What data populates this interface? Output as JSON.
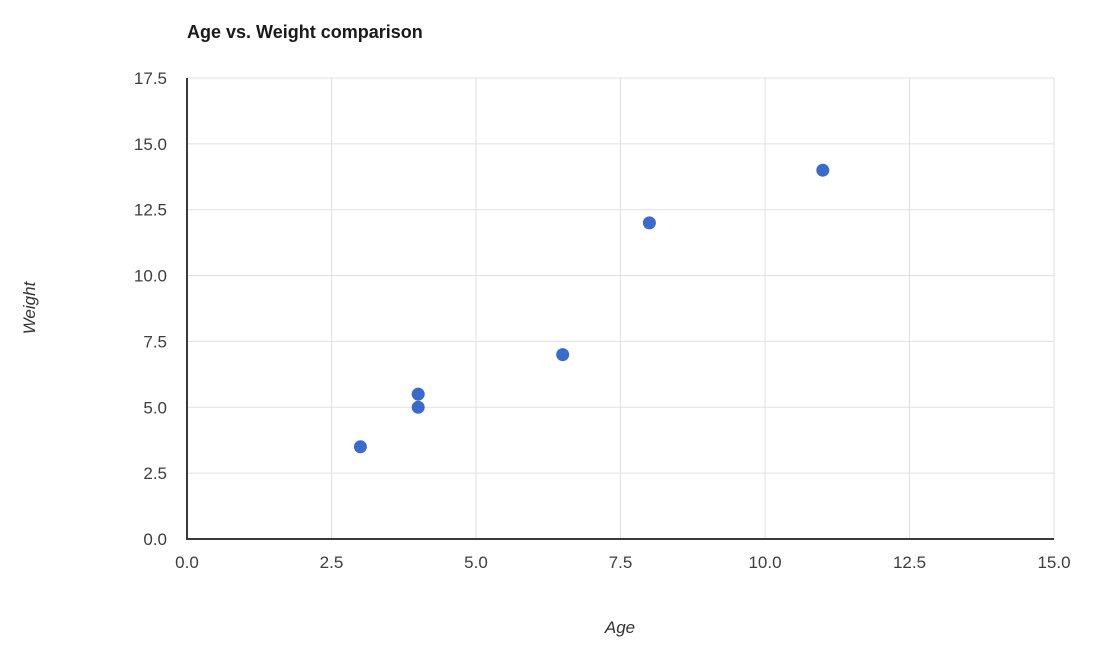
{
  "chart_data": {
    "type": "scatter",
    "title": "Age vs. Weight comparison",
    "xlabel": "Age",
    "ylabel": "Weight",
    "xlim": [
      0,
      15
    ],
    "ylim": [
      0,
      17.5
    ],
    "x_ticks": [
      0.0,
      2.5,
      5.0,
      7.5,
      10.0,
      12.5,
      15.0
    ],
    "y_ticks": [
      0.0,
      2.5,
      5.0,
      7.5,
      10.0,
      12.5,
      15.0,
      17.5
    ],
    "tick_decimals": 1,
    "grid": true,
    "legend": "none",
    "points": [
      {
        "x": 3,
        "y": 3.5
      },
      {
        "x": 4,
        "y": 5
      },
      {
        "x": 4,
        "y": 5.5
      },
      {
        "x": 6.5,
        "y": 7
      },
      {
        "x": 8,
        "y": 12
      },
      {
        "x": 11,
        "y": 14
      }
    ],
    "point_radius": 6.5,
    "colors": {
      "point": "#3a6bcc",
      "grid": "#e0e0e0",
      "axis": "#3a3a3a",
      "tick_label": "#3d3d3d",
      "title": "#1a1a1a",
      "axis_title": "#333333",
      "background": "#ffffff"
    }
  }
}
